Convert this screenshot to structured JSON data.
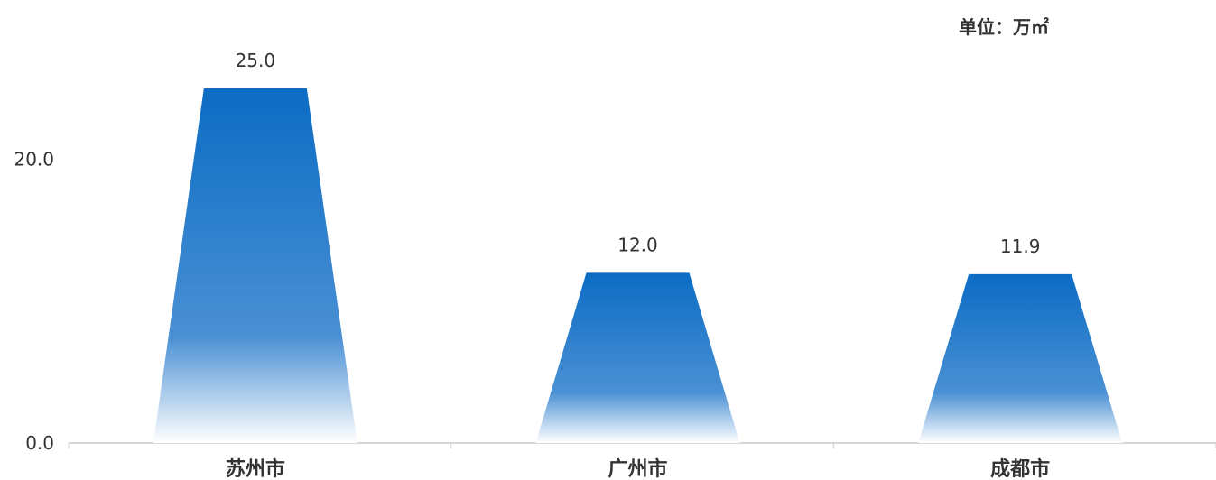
{
  "chart_data": {
    "type": "bar",
    "unit_label": "单位：万㎡",
    "categories": [
      "苏州市",
      "广州市",
      "成都市"
    ],
    "values": [
      25.0,
      12.0,
      11.9
    ],
    "value_labels": [
      "25.0",
      "12.0",
      "11.9"
    ],
    "yticks": [
      0.0,
      20.0
    ],
    "ytick_labels": [
      "0.0",
      "20.0"
    ],
    "ylim": [
      0,
      31.1
    ],
    "grid": false,
    "colors": {
      "bar_top": "#0b6cc4",
      "bar_bottom": "#ffffff",
      "axis": "#cccccc",
      "text": "#333333"
    }
  }
}
